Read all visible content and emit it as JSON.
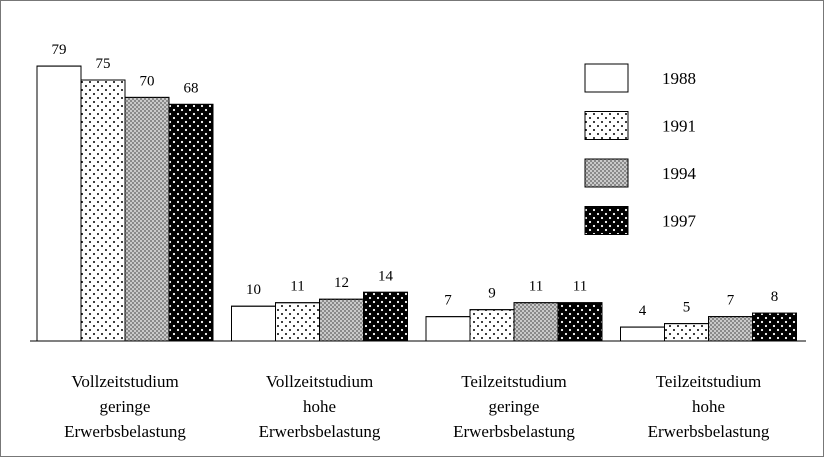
{
  "chart_data": {
    "type": "bar",
    "categories": [
      [
        "Vollzeitstudium",
        "geringe",
        "Erwerbsbelastung"
      ],
      [
        "Vollzeitstudium",
        "hohe",
        "Erwerbsbelastung"
      ],
      [
        "Teilzeitstudium",
        "geringe",
        "Erwerbsbelastung"
      ],
      [
        "Teilzeitstudium",
        "hohe",
        "Erwerbsbelastung"
      ]
    ],
    "series": [
      {
        "name": "1988",
        "color": "#ffffff",
        "values": [
          79,
          10,
          7,
          4
        ]
      },
      {
        "name": "1991",
        "color": "#ffffff",
        "values": [
          75,
          11,
          9,
          5
        ]
      },
      {
        "name": "1994",
        "color": "#8a8a8a",
        "values": [
          70,
          12,
          11,
          7
        ]
      },
      {
        "name": "1997",
        "color": "#000000",
        "values": [
          68,
          14,
          11,
          8
        ]
      }
    ],
    "legend": "top-right"
  }
}
